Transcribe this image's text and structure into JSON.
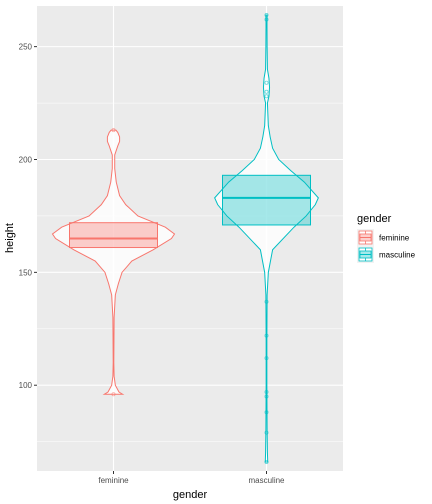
{
  "chart_data": {
    "type": "violin+box",
    "xlabel": "gender",
    "ylabel": "height",
    "categories": [
      "feminine",
      "masculine"
    ],
    "ylim": [
      62,
      268
    ],
    "yticks": [
      100,
      150,
      200,
      250
    ],
    "grid": true,
    "legend": {
      "title": "gender",
      "position": "right",
      "entries": [
        "feminine",
        "masculine"
      ]
    },
    "colors": {
      "feminine": "#F8766D",
      "masculine": "#00BFC4",
      "panel": "#EBEBEB",
      "grid": "#FFFFFF"
    },
    "series": [
      {
        "name": "feminine",
        "violin_range": [
          96,
          213
        ],
        "violin_halfwidth_profile": [
          [
            96,
            0.15
          ],
          [
            97,
            0.09
          ],
          [
            100,
            0.03
          ],
          [
            104,
            0.01
          ],
          [
            110,
            0.005
          ],
          [
            130,
            0.01
          ],
          [
            140,
            0.03
          ],
          [
            145,
            0.08
          ],
          [
            150,
            0.14
          ],
          [
            155,
            0.3
          ],
          [
            160,
            0.65
          ],
          [
            165,
            0.95
          ],
          [
            167,
            1.0
          ],
          [
            170,
            0.85
          ],
          [
            175,
            0.4
          ],
          [
            180,
            0.2
          ],
          [
            184,
            0.1
          ],
          [
            190,
            0.045
          ],
          [
            196,
            0.02
          ],
          [
            202,
            0.02
          ],
          [
            206,
            0.07
          ],
          [
            208,
            0.1
          ],
          [
            210,
            0.1
          ],
          [
            212,
            0.07
          ],
          [
            213,
            0.04
          ]
        ],
        "box": {
          "lower": 161,
          "median": 165,
          "upper": 172,
          "whisker_low": 150,
          "whisker_high": 184
        },
        "outliers": [
          96,
          213
        ]
      },
      {
        "name": "masculine",
        "violin_range": [
          66,
          264
        ],
        "violin_halfwidth_profile": [
          [
            66,
            0.02
          ],
          [
            70,
            0.015
          ],
          [
            80,
            0.01
          ],
          [
            100,
            0.006
          ],
          [
            120,
            0.006
          ],
          [
            140,
            0.01
          ],
          [
            150,
            0.03
          ],
          [
            160,
            0.1
          ],
          [
            170,
            0.45
          ],
          [
            175,
            0.65
          ],
          [
            180,
            0.8
          ],
          [
            183,
            0.85
          ],
          [
            190,
            0.62
          ],
          [
            195,
            0.4
          ],
          [
            200,
            0.2
          ],
          [
            205,
            0.1
          ],
          [
            210,
            0.06
          ],
          [
            215,
            0.03
          ],
          [
            225,
            0.015
          ],
          [
            228,
            0.04
          ],
          [
            232,
            0.05
          ],
          [
            236,
            0.04
          ],
          [
            240,
            0.015
          ],
          [
            250,
            0.01
          ],
          [
            260,
            0.008
          ],
          [
            264,
            0.01
          ]
        ],
        "box": {
          "lower": 171,
          "median": 183,
          "upper": 193,
          "whisker_low": 160,
          "whisker_high": 213
        },
        "outliers": [
          66,
          79,
          88,
          95,
          97,
          112,
          122,
          137,
          228,
          230,
          234,
          262,
          264
        ]
      }
    ]
  }
}
